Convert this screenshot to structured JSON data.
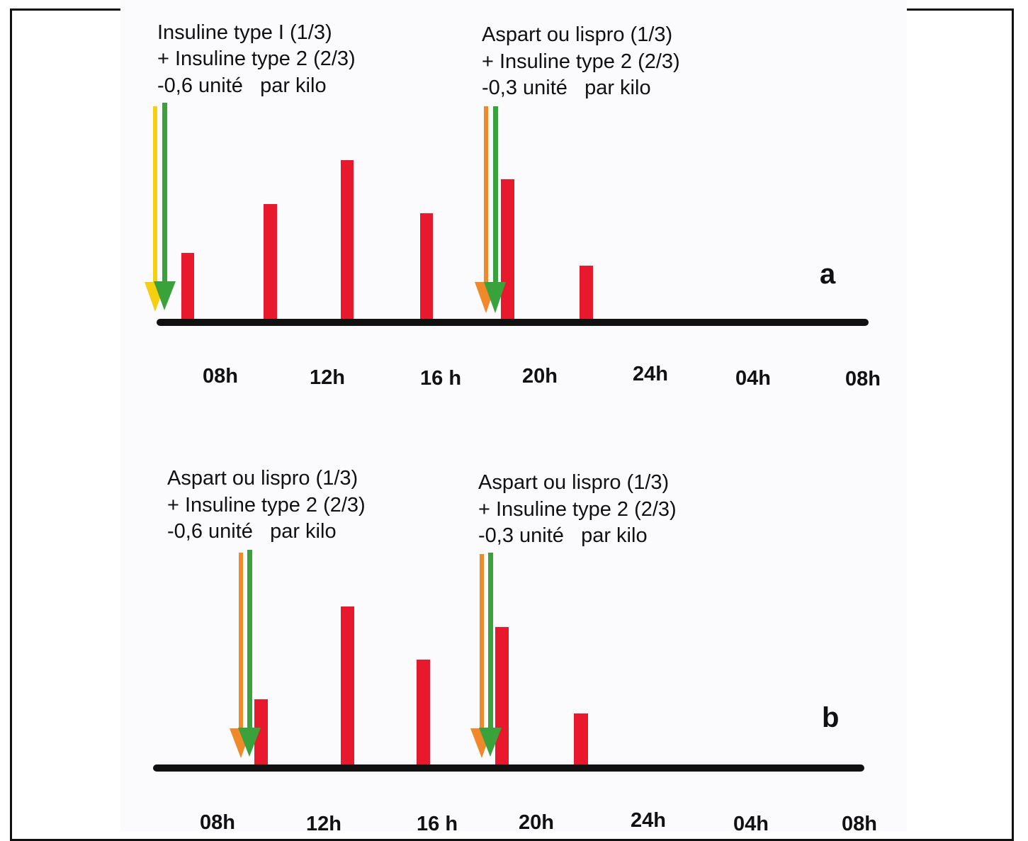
{
  "colors": {
    "meal_bar": "#e8192c",
    "axis": "#111111",
    "arrow_yellow": "#f5d010",
    "arrow_orange": "#f0892a",
    "arrow_green": "#3aa23a"
  },
  "panels": [
    {
      "label": "a",
      "time_ticks": [
        "08h",
        "12h",
        "16 h",
        "20h",
        "24h",
        "04h",
        "08h"
      ],
      "injections": [
        {
          "lines": [
            "Insuline type I (1/3)",
            "+ Insuline type 2 (2/3)",
            "-0,6 unité   par kilo"
          ],
          "arrows": [
            "yellow",
            "green"
          ]
        },
        {
          "lines": [
            "Aspart ou lispro (1/3)",
            "+ Insuline type 2 (2/3)",
            "-0,3 unité   par kilo"
          ],
          "arrows": [
            "orange",
            "green"
          ]
        }
      ],
      "bars": [
        0.42,
        0.72,
        1.0,
        0.66,
        0.88,
        0.33
      ]
    },
    {
      "label": "b",
      "time_ticks": [
        "08h",
        "12h",
        "16 h",
        "20h",
        "24h",
        "04h",
        "08h"
      ],
      "injections": [
        {
          "lines": [
            "Aspart ou lispro (1/3)",
            "+ Insuline type 2 (2/3)",
            "-0,6 unité   par kilo"
          ],
          "arrows": [
            "orange",
            "green"
          ]
        },
        {
          "lines": [
            "Aspart ou lispro (1/3)",
            "+ Insuline type 2 (2/3)",
            "-0,3 unité   par kilo"
          ],
          "arrows": [
            "orange",
            "green"
          ]
        }
      ],
      "bars": [
        0.42,
        1.0,
        0.67,
        0.87,
        0.33
      ]
    }
  ]
}
